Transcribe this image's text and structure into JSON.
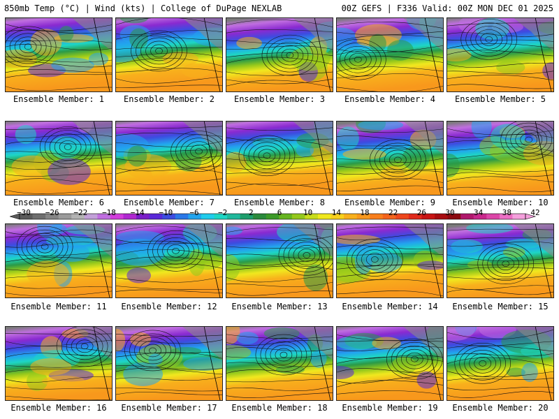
{
  "header": {
    "left": "850mb Temp (°C) | Wind (kts) | College of DuPage NEXLAB",
    "right": "00Z GEFS | F336 Valid: 00Z MON DEC 01 2025"
  },
  "caption_prefix": "Ensemble Member: ",
  "members": [
    {
      "label": "Ensemble Member: 1"
    },
    {
      "label": "Ensemble Member: 2"
    },
    {
      "label": "Ensemble Member: 3"
    },
    {
      "label": "Ensemble Member: 4"
    },
    {
      "label": "Ensemble Member: 5"
    },
    {
      "label": "Ensemble Member: 6"
    },
    {
      "label": "Ensemble Member: 7"
    },
    {
      "label": "Ensemble Member: 8"
    },
    {
      "label": "Ensemble Member: 9"
    },
    {
      "label": "Ensemble Member: 10"
    },
    {
      "label": "Ensemble Member: 11"
    },
    {
      "label": "Ensemble Member: 12"
    },
    {
      "label": "Ensemble Member: 13"
    },
    {
      "label": "Ensemble Member: 14"
    },
    {
      "label": "Ensemble Member: 15"
    },
    {
      "label": "Ensemble Member: 16"
    },
    {
      "label": "Ensemble Member: 17"
    },
    {
      "label": "Ensemble Member: 18"
    },
    {
      "label": "Ensemble Member: 19"
    },
    {
      "label": "Ensemble Member: 20"
    }
  ],
  "colorbar": {
    "ticks": [
      "−30",
      "−26",
      "−22",
      "−18",
      "−14",
      "−10",
      "−6",
      "−2",
      "2",
      "6",
      "10",
      "14",
      "18",
      "22",
      "26",
      "30",
      "34",
      "38",
      "42"
    ],
    "colors": [
      "#5a5a5a",
      "#6e6e6e",
      "#858585",
      "#9b9b9b",
      "#b3b3b3",
      "#c2a0d8",
      "#c06ee0",
      "#d23cdc",
      "#b028d0",
      "#7a1ec8",
      "#5a28d8",
      "#3c4ce0",
      "#2a78e8",
      "#22a4ee",
      "#20ccec",
      "#1ed6c4",
      "#20b89c",
      "#1e9e6c",
      "#2a8a3c",
      "#3c9a28",
      "#66b420",
      "#94c81c",
      "#c8dc1c",
      "#f0e81e",
      "#f8d01c",
      "#f8b01c",
      "#f8981c",
      "#f87e1c",
      "#f4641c",
      "#ee461c",
      "#e02a1c",
      "#c81414",
      "#a80c10",
      "#8c0a10",
      "#b0186c",
      "#c8288c",
      "#dc46a8",
      "#ec6ec4",
      "#f4a0dc"
    ]
  }
}
